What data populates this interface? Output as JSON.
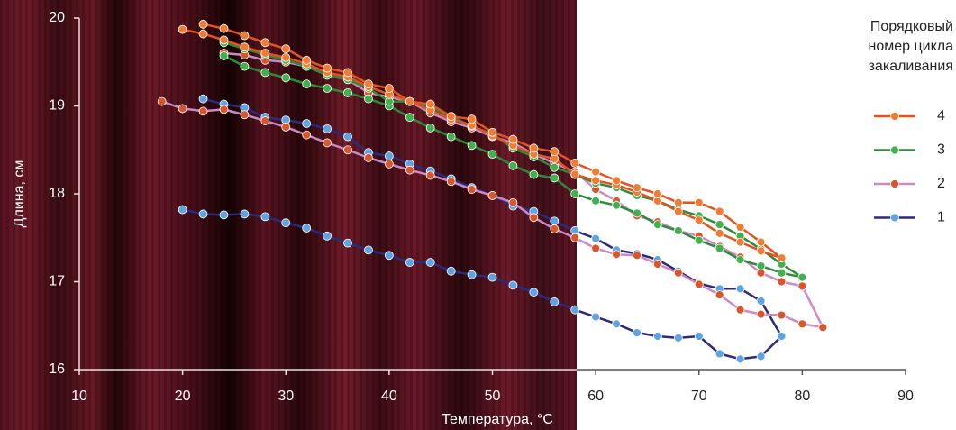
{
  "chart_data": {
    "type": "line",
    "x_label": "Температура, °С",
    "y_label": "Длина, см",
    "legend_title": [
      "Порядковый",
      "номер цикла",
      "закаливания"
    ],
    "xlim": [
      10,
      90
    ],
    "xticks": [
      10,
      20,
      30,
      40,
      50,
      60,
      70,
      80,
      90
    ],
    "ylim": [
      16,
      20
    ],
    "yticks": [
      16,
      17,
      18,
      19,
      20
    ],
    "legend": "right",
    "series": [
      {
        "name": "4",
        "color": "#e4521f",
        "marker_color": "#f07c33",
        "x": [
          20,
          22,
          24,
          26,
          28,
          30,
          32,
          34,
          36,
          38,
          40,
          42,
          44,
          46,
          48,
          50,
          52,
          54,
          56,
          58,
          60,
          62,
          64,
          66,
          68,
          70,
          72,
          74,
          76,
          78,
          76,
          74,
          72,
          70,
          68,
          66,
          64,
          62,
          60,
          58,
          56,
          54,
          52,
          50,
          48,
          46,
          44,
          42,
          40,
          38,
          36,
          34,
          32,
          30,
          28,
          26,
          24,
          22
        ],
        "values": [
          19.87,
          19.82,
          19.75,
          19.67,
          19.6,
          19.55,
          19.48,
          19.38,
          19.33,
          19.22,
          19.13,
          19.05,
          18.95,
          18.85,
          18.78,
          18.66,
          18.55,
          18.45,
          18.4,
          18.22,
          18.15,
          18.1,
          18.02,
          17.92,
          17.8,
          17.7,
          17.55,
          17.45,
          17.35,
          17.27,
          17.45,
          17.62,
          17.8,
          17.9,
          17.9,
          18.0,
          18.07,
          18.15,
          18.25,
          18.35,
          18.48,
          18.52,
          18.62,
          18.7,
          18.85,
          18.88,
          19.02,
          19.05,
          19.2,
          19.25,
          19.38,
          19.43,
          19.52,
          19.65,
          19.72,
          19.8,
          19.88,
          19.93
        ]
      },
      {
        "name": "3",
        "color": "#2e8a3a",
        "marker_color": "#42b04f",
        "x": [
          24,
          26,
          28,
          30,
          32,
          34,
          36,
          38,
          40,
          42,
          44,
          46,
          48,
          50,
          52,
          54,
          56,
          58,
          60,
          62,
          64,
          66,
          68,
          70,
          72,
          74,
          76,
          78,
          80,
          78,
          76,
          74,
          72,
          70,
          68,
          66,
          64,
          62,
          60,
          58,
          56,
          54,
          52,
          50,
          48,
          46,
          44,
          42,
          40,
          38,
          36,
          34,
          32,
          30,
          28,
          26,
          24
        ],
        "values": [
          19.57,
          19.45,
          19.38,
          19.32,
          19.25,
          19.2,
          19.15,
          19.08,
          19.0,
          18.87,
          18.75,
          18.65,
          18.55,
          18.45,
          18.32,
          18.22,
          18.18,
          18.0,
          17.92,
          17.87,
          17.78,
          17.65,
          17.58,
          17.47,
          17.38,
          17.25,
          17.18,
          17.1,
          17.05,
          17.2,
          17.37,
          17.52,
          17.65,
          17.75,
          17.82,
          17.92,
          17.98,
          18.07,
          18.12,
          18.22,
          18.3,
          18.42,
          18.52,
          18.68,
          18.77,
          18.88,
          18.98,
          19.05,
          19.05,
          19.2,
          19.3,
          19.35,
          19.45,
          19.52,
          19.58,
          19.65,
          19.72
        ]
      },
      {
        "name": "2",
        "color": "#c98ac6",
        "marker_color": "#d9552a",
        "x": [
          18,
          20,
          22,
          24,
          26,
          28,
          30,
          32,
          34,
          36,
          38,
          40,
          42,
          44,
          46,
          48,
          50,
          52,
          54,
          56,
          58,
          60,
          62,
          64,
          66,
          68,
          70,
          72,
          74,
          76,
          78,
          80,
          82,
          80,
          78,
          76,
          74,
          72,
          70,
          68,
          66,
          64,
          62,
          60,
          58,
          56,
          54,
          52,
          50,
          48,
          46,
          44,
          42,
          40,
          38,
          36,
          34,
          32,
          30,
          28,
          26,
          24
        ],
        "values": [
          19.05,
          18.97,
          18.94,
          18.96,
          18.9,
          18.83,
          18.76,
          18.67,
          18.58,
          18.5,
          18.41,
          18.34,
          18.27,
          18.21,
          18.14,
          18.05,
          17.98,
          17.9,
          17.73,
          17.6,
          17.5,
          17.38,
          17.31,
          17.3,
          17.2,
          17.1,
          16.97,
          16.85,
          16.68,
          16.63,
          16.62,
          16.52,
          16.48,
          16.95,
          17.0,
          17.1,
          17.28,
          17.4,
          17.52,
          17.58,
          17.68,
          17.75,
          17.92,
          18.05,
          18.25,
          18.35,
          18.45,
          18.58,
          18.65,
          18.75,
          18.82,
          18.92,
          19.05,
          19.1,
          19.15,
          19.3,
          19.35,
          19.45,
          19.5,
          19.52,
          19.58,
          19.6
        ]
      },
      {
        "name": "1",
        "color": "#2b2a7c",
        "marker_color": "#5fa3e2",
        "x": [
          22,
          24,
          26,
          28,
          30,
          32,
          34,
          36,
          38,
          40,
          42,
          44,
          46,
          48,
          50,
          52,
          54,
          56,
          58,
          60,
          62,
          64,
          66,
          68,
          70,
          72,
          74,
          76,
          78,
          76,
          74,
          72,
          70,
          68,
          66,
          64,
          62,
          60,
          58,
          56,
          54,
          52,
          50,
          48,
          46,
          44,
          42,
          40,
          38,
          36,
          34,
          32,
          30,
          28,
          26,
          24,
          22,
          20
        ],
        "values": [
          19.08,
          19.02,
          18.98,
          18.87,
          18.84,
          18.8,
          18.74,
          18.65,
          18.47,
          18.43,
          18.34,
          18.26,
          18.17,
          18.07,
          17.98,
          17.86,
          17.8,
          17.69,
          17.58,
          17.49,
          17.36,
          17.32,
          17.25,
          17.12,
          16.98,
          16.92,
          16.92,
          16.78,
          16.38,
          16.15,
          16.12,
          16.18,
          16.38,
          16.36,
          16.38,
          16.42,
          16.52,
          16.6,
          16.68,
          16.77,
          16.88,
          16.96,
          17.05,
          17.08,
          17.12,
          17.22,
          17.22,
          17.3,
          17.36,
          17.44,
          17.52,
          17.61,
          17.67,
          17.74,
          17.77,
          17.76,
          17.77,
          17.82
        ]
      }
    ]
  }
}
